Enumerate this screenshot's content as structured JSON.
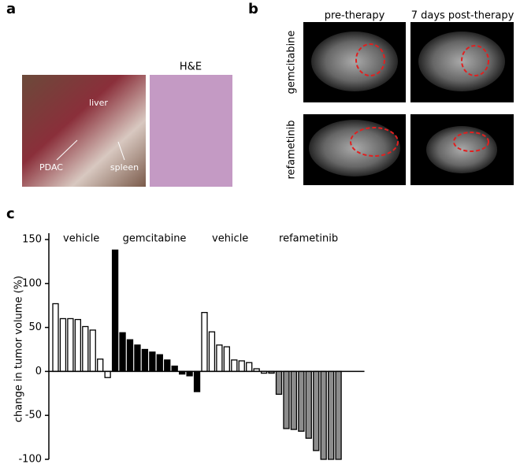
{
  "panels": {
    "a": "a",
    "b": "b",
    "c": "c"
  },
  "panel_a": {
    "liver": "liver",
    "pdac": "PDAC",
    "spleen": "spleen",
    "he": "H&E"
  },
  "panel_b": {
    "col1": "pre-therapy",
    "col2": "7 days post-therapy",
    "row1": "gemcitabine",
    "row2": "refametinib"
  },
  "chart_data": {
    "type": "bar",
    "ylabel": "change in tumor volume (%)",
    "ylim": [
      -100,
      150
    ],
    "yticks": [
      150,
      100,
      50,
      0,
      -50,
      -100
    ],
    "series": [
      {
        "name": "vehicle",
        "color": "#ffffff",
        "values": [
          77,
          60,
          60,
          59,
          51,
          47,
          14,
          -7
        ]
      },
      {
        "name": "gemcitabine",
        "color": "#000000",
        "values": [
          138,
          44,
          36,
          30,
          25,
          22,
          19,
          13,
          6,
          -3,
          -5,
          -23
        ]
      },
      {
        "name": "vehicle",
        "color": "#ffffff",
        "values": [
          67,
          45,
          30,
          28,
          13,
          12,
          10,
          3,
          -2
        ]
      },
      {
        "name": "refametinib",
        "color": "#8c8c8c",
        "values": [
          -2,
          -26,
          -65,
          -66,
          -68,
          -76,
          -90,
          -100,
          -100,
          -100
        ]
      }
    ]
  }
}
